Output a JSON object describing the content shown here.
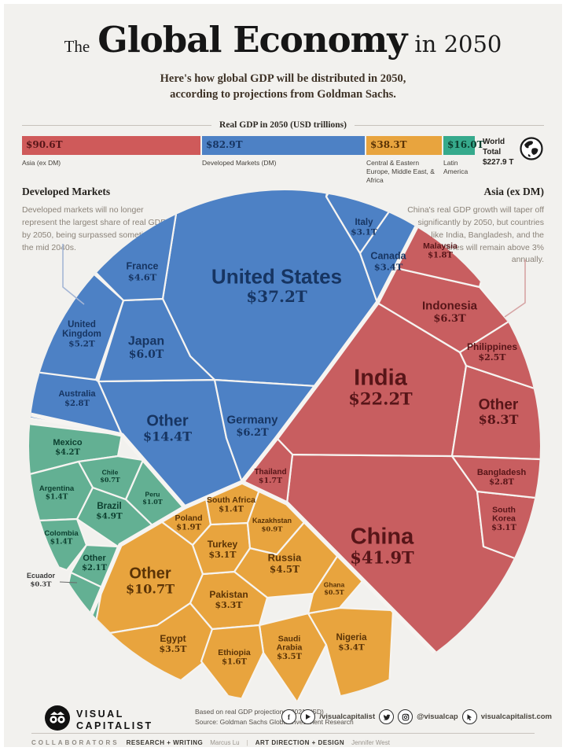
{
  "header": {
    "the": "The",
    "title": "Global Economy",
    "in_year": "in 2050",
    "subtitle_line1": "Here's how global GDP will be distributed in 2050,",
    "subtitle_line2": "according to projections from Goldman Sachs."
  },
  "legend": {
    "title": "Real GDP in 2050 (USD trillions)",
    "world_total_label": "World Total",
    "world_total_value": "$227.9 T"
  },
  "annotations": {
    "left": {
      "title": "Developed Markets",
      "text": "Developed markets will no longer represent the largest share of real GDP by 2050, being surpassed sometime in the mid 2040s."
    },
    "right": {
      "title": "Asia (ex DM)",
      "text": "China's real GDP growth will taper off significantly by 2050, but countries like India, Bangladesh, and the Philippines will remain above 3% annually."
    }
  },
  "chart_data": {
    "type": "voronoi_circle",
    "title": "Real GDP in 2050 (USD trillions)",
    "unit": "USD trillions",
    "world_total": 227.9,
    "groups": [
      {
        "id": "asia",
        "legend_label": "Asia (ex DM)",
        "total": 90.6,
        "color": "#c85e60",
        "legend_color": "#cf5a5a",
        "text_color": "#571518",
        "countries": [
          {
            "id": "china",
            "name": "China",
            "value": 41.9
          },
          {
            "id": "india",
            "name": "India",
            "value": 22.2
          },
          {
            "id": "other_asia",
            "name": "Other",
            "value": 8.3
          },
          {
            "id": "indonesia",
            "name": "Indonesia",
            "value": 6.3
          },
          {
            "id": "south_korea",
            "name": "South Korea",
            "value": 3.1
          },
          {
            "id": "bangladesh",
            "name": "Bangladesh",
            "value": 2.8
          },
          {
            "id": "philippines",
            "name": "Philippines",
            "value": 2.5
          },
          {
            "id": "malaysia",
            "name": "Malaysia",
            "value": 1.8
          },
          {
            "id": "thailand",
            "name": "Thailand",
            "value": 1.7
          }
        ]
      },
      {
        "id": "dm",
        "legend_label": "Developed Markets (DM)",
        "total": 82.9,
        "color": "#4d81c5",
        "legend_color": "#4d81c5",
        "text_color": "#173562",
        "countries": [
          {
            "id": "us",
            "name": "United States",
            "value": 37.2
          },
          {
            "id": "other_dm",
            "name": "Other",
            "value": 14.4
          },
          {
            "id": "germany",
            "name": "Germany",
            "value": 6.2
          },
          {
            "id": "japan",
            "name": "Japan",
            "value": 6.0
          },
          {
            "id": "uk",
            "name": "United Kingdom",
            "value": 5.2
          },
          {
            "id": "france",
            "name": "France",
            "value": 4.6
          },
          {
            "id": "canada",
            "name": "Canada",
            "value": 3.4
          },
          {
            "id": "italy",
            "name": "Italy",
            "value": 3.1
          },
          {
            "id": "australia",
            "name": "Australia",
            "value": 2.8
          }
        ]
      },
      {
        "id": "ceemea",
        "legend_label": "Central & Eastern Europe, Middle East, & Africa",
        "total": 38.3,
        "color": "#e8a43e",
        "legend_color": "#e8a43e",
        "text_color": "#5a3306",
        "countries": [
          {
            "id": "other_ceemea",
            "name": "Other",
            "value": 10.7
          },
          {
            "id": "russia",
            "name": "Russia",
            "value": 4.5
          },
          {
            "id": "egypt",
            "name": "Egypt",
            "value": 3.5
          },
          {
            "id": "saudi_arabia",
            "name": "Saudi Arabia",
            "value": 3.5
          },
          {
            "id": "nigeria",
            "name": "Nigeria",
            "value": 3.4
          },
          {
            "id": "pakistan",
            "name": "Pakistan",
            "value": 3.3
          },
          {
            "id": "turkey",
            "name": "Turkey",
            "value": 3.1
          },
          {
            "id": "poland",
            "name": "Poland",
            "value": 1.9
          },
          {
            "id": "ethiopia",
            "name": "Ethiopia",
            "value": 1.6
          },
          {
            "id": "south_africa",
            "name": "South Africa",
            "value": 1.4
          },
          {
            "id": "kazakhstan",
            "name": "Kazakhstan",
            "value": 0.9
          },
          {
            "id": "ghana",
            "name": "Ghana",
            "value": 0.5
          }
        ]
      },
      {
        "id": "latam",
        "legend_label": "Latin America",
        "total": 16.0,
        "color": "#63b093",
        "legend_color": "#36aa8c",
        "text_color": "#0d4030",
        "countries": [
          {
            "id": "brazil",
            "name": "Brazil",
            "value": 4.9
          },
          {
            "id": "mexico",
            "name": "Mexico",
            "value": 4.2
          },
          {
            "id": "other_latam",
            "name": "Other",
            "value": 2.1
          },
          {
            "id": "argentina",
            "name": "Argentina",
            "value": 1.4
          },
          {
            "id": "colombia",
            "name": "Colombia",
            "value": 1.4
          },
          {
            "id": "peru",
            "name": "Peru",
            "value": 1.0
          },
          {
            "id": "chile",
            "name": "Chile",
            "value": 0.7
          },
          {
            "id": "ecuador",
            "name": "Ecuador",
            "value": 0.3
          }
        ]
      }
    ]
  },
  "footer": {
    "logo_line1": "VISUAL",
    "logo_line2": "CAPITALIST",
    "note_line1": "Based on real GDP projections (2021 USD)",
    "note_line2": "Source: Goldman Sachs Global Investment Research",
    "social": {
      "handle_fb_yt": "/visualcapitalist",
      "handle_tw_ig": "@visualcap",
      "website": "visualcapitalist.com"
    },
    "collaborators": {
      "label": "COLLABORATORS",
      "role1": "RESEARCH + WRITING",
      "name1": "Marcus Lu",
      "divider": "|",
      "role2": "ART DIRECTION + DESIGN",
      "name2": "Jennifer West"
    }
  }
}
